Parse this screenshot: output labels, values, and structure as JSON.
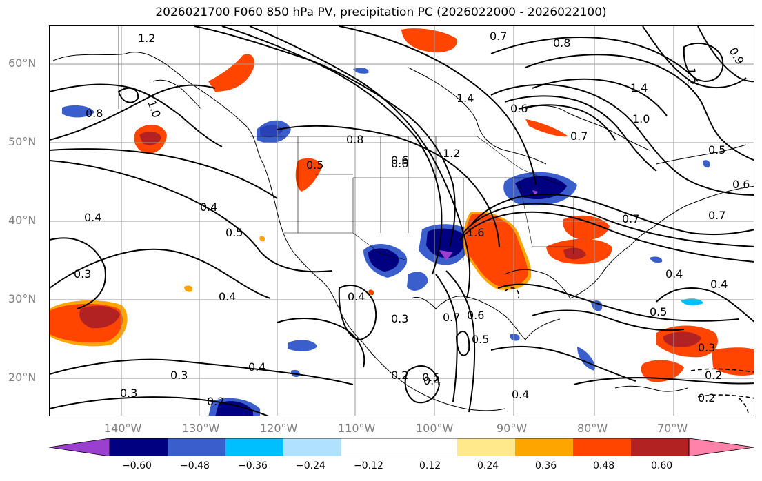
{
  "title": "2026021700 F060 850 hPa PV, precipitation PC (2026022000 - 2026022100)",
  "latitude_labels": [
    "60°N",
    "50°N",
    "40°N",
    "30°N",
    "20°N"
  ],
  "longitude_labels": [
    "140°W",
    "130°W",
    "120°W",
    "110°W",
    "100°W",
    "90°W",
    "80°W",
    "70°W"
  ],
  "colorbar": {
    "ticks": [
      "−0.60",
      "−0.48",
      "−0.36",
      "−0.24",
      "−0.12",
      "0.12",
      "0.24",
      "0.36",
      "0.48",
      "0.60"
    ],
    "colors": [
      "#9b3fcf",
      "#000080",
      "#3a5fcd",
      "#00bfff",
      "#b0e2ff",
      "#ffffff",
      "#ffe98a",
      "#ffa500",
      "#ff4500",
      "#b22222",
      "#ff82ab"
    ]
  },
  "contour_labels": [
    {
      "text": "1.2"
    },
    {
      "text": "0.8"
    },
    {
      "text": "1.0"
    },
    {
      "text": "0.8"
    },
    {
      "text": "0.6"
    },
    {
      "text": "1.2"
    },
    {
      "text": "0.5"
    },
    {
      "text": "0.4"
    },
    {
      "text": "0.5"
    },
    {
      "text": "0.4"
    },
    {
      "text": "0.3"
    },
    {
      "text": "0.4"
    },
    {
      "text": "0.4"
    },
    {
      "text": "0.3"
    },
    {
      "text": "0.3"
    },
    {
      "text": "0.2"
    },
    {
      "text": "1.4"
    },
    {
      "text": "0.6"
    },
    {
      "text": "0.7"
    },
    {
      "text": "1.4"
    },
    {
      "text": "1.0"
    },
    {
      "text": "1.2"
    },
    {
      "text": "0.8"
    },
    {
      "text": "0.9"
    },
    {
      "text": "0.7"
    },
    {
      "text": "0.6"
    },
    {
      "text": "0.5"
    },
    {
      "text": "0.7"
    },
    {
      "text": "0.4"
    },
    {
      "text": "0.4"
    },
    {
      "text": "0.5"
    },
    {
      "text": "0.3"
    },
    {
      "text": "0.2"
    },
    {
      "text": "0.2"
    },
    {
      "text": "0.7"
    },
    {
      "text": "0.6"
    },
    {
      "text": "0.5"
    },
    {
      "text": "0.4"
    },
    {
      "text": "0.3"
    },
    {
      "text": "0.5"
    },
    {
      "text": "0.2"
    },
    {
      "text": "0.4"
    },
    {
      "text": "1.6"
    },
    {
      "text": "0.6"
    },
    {
      "text": "0.4"
    },
    {
      "text": "0.7"
    }
  ]
}
